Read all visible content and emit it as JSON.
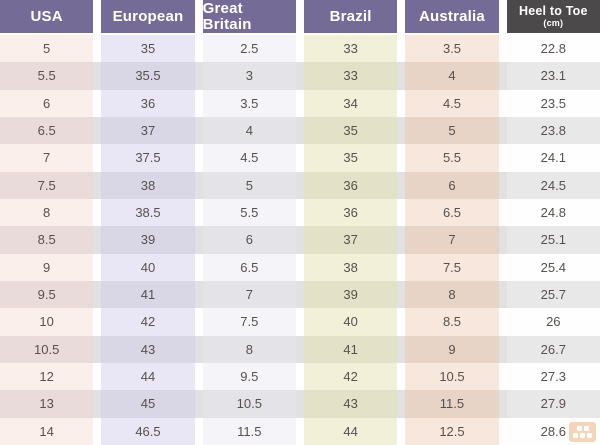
{
  "chart_data": {
    "type": "table",
    "columns": [
      {
        "label": "USA",
        "header_bg": "#756b97",
        "row_light": "#fbefec",
        "row_dark": "#e9dbd9"
      },
      {
        "label": "European",
        "header_bg": "#756b97",
        "row_light": "#e9e7f5",
        "row_dark": "#d9d7e6"
      },
      {
        "label": "Great Britain",
        "header_bg": "#756b97",
        "row_light": "#f5f4f8",
        "row_dark": "#e4e4e8"
      },
      {
        "label": "Brazil",
        "header_bg": "#756b97",
        "row_light": "#f2f0d9",
        "row_dark": "#e3e1c8"
      },
      {
        "label": "Australia",
        "header_bg": "#756b97",
        "row_light": "#f8e7dc",
        "row_dark": "#e7d4c6"
      },
      {
        "label": "Heel to Toe",
        "sublabel": "(cm)",
        "header_bg": "#4c494a",
        "row_light": "#fefefe",
        "row_dark": "#e9e8e9"
      }
    ],
    "rows": [
      [
        "5",
        "35",
        "2.5",
        "33",
        "3.5",
        "22.8"
      ],
      [
        "5.5",
        "35.5",
        "3",
        "33",
        "4",
        "23.1"
      ],
      [
        "6",
        "36",
        "3.5",
        "34",
        "4.5",
        "23.5"
      ],
      [
        "6.5",
        "37",
        "4",
        "35",
        "5",
        "23.8"
      ],
      [
        "7",
        "37.5",
        "4.5",
        "35",
        "5.5",
        "24.1"
      ],
      [
        "7.5",
        "38",
        "5",
        "36",
        "6",
        "24.5"
      ],
      [
        "8",
        "38.5",
        "5.5",
        "36",
        "6.5",
        "24.8"
      ],
      [
        "8.5",
        "39",
        "6",
        "37",
        "7",
        "25.1"
      ],
      [
        "9",
        "40",
        "6.5",
        "38",
        "7.5",
        "25.4"
      ],
      [
        "9.5",
        "41",
        "7",
        "39",
        "8",
        "25.7"
      ],
      [
        "10",
        "42",
        "7.5",
        "40",
        "8.5",
        "26"
      ],
      [
        "10.5",
        "43",
        "8",
        "41",
        "9",
        "26.7"
      ],
      [
        "12",
        "44",
        "9.5",
        "42",
        "10.5",
        "27.3"
      ],
      [
        "13",
        "45",
        "10.5",
        "43",
        "11.5",
        "27.9"
      ],
      [
        "14",
        "46.5",
        "11.5",
        "44",
        "12.5",
        "28.6"
      ]
    ]
  },
  "styles": {
    "header_text_color": "#ffffff",
    "cell_text_color": "#57514e",
    "stripe_light": "#ffffff",
    "stripe_dark": "#e2e1e2"
  },
  "watermark": {
    "color": "#e0812f"
  }
}
